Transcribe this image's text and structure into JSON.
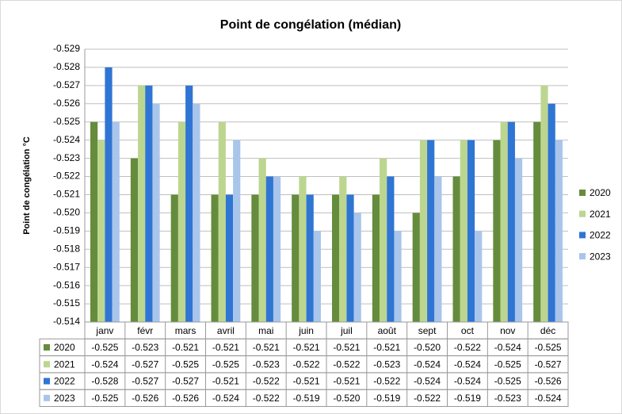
{
  "chart_data": {
    "type": "bar",
    "title": "Point de congélation (médian)",
    "y_label": "Point de congélation °C",
    "categories": [
      "janv",
      "févr",
      "mars",
      "avril",
      "mai",
      "juin",
      "juil",
      "août",
      "sept",
      "oct",
      "nov",
      "déc"
    ],
    "series": [
      {
        "name": "2020",
        "color": "#648c3c",
        "values": [
          -0.525,
          -0.523,
          -0.521,
          -0.521,
          -0.521,
          -0.521,
          -0.521,
          -0.521,
          -0.52,
          -0.522,
          -0.524,
          -0.525
        ],
        "value_labels": [
          "-0.525",
          "-0.523",
          "-0.521",
          "-0.521",
          "-0.521",
          "-0.521",
          "-0.521",
          "-0.521",
          "-0.520",
          "-0.522",
          "-0.524",
          "-0.525"
        ]
      },
      {
        "name": "2021",
        "color": "#bcd690",
        "values": [
          -0.524,
          -0.527,
          -0.525,
          -0.525,
          -0.523,
          -0.522,
          -0.522,
          -0.523,
          -0.524,
          -0.524,
          -0.525,
          -0.527
        ],
        "value_labels": [
          "-0.524",
          "-0.527",
          "-0.525",
          "-0.525",
          "-0.523",
          "-0.522",
          "-0.522",
          "-0.523",
          "-0.524",
          "-0.524",
          "-0.525",
          "-0.527"
        ]
      },
      {
        "name": "2022",
        "color": "#2f75d4",
        "values": [
          -0.528,
          -0.527,
          -0.527,
          -0.521,
          -0.522,
          -0.521,
          -0.521,
          -0.522,
          -0.524,
          -0.524,
          -0.525,
          -0.526
        ],
        "value_labels": [
          "-0.528",
          "-0.527",
          "-0.527",
          "-0.521",
          "-0.522",
          "-0.521",
          "-0.521",
          "-0.522",
          "-0.524",
          "-0.524",
          "-0.525",
          "-0.526"
        ]
      },
      {
        "name": "2023",
        "color": "#a9c5eb",
        "values": [
          -0.525,
          -0.526,
          -0.526,
          -0.524,
          -0.522,
          -0.519,
          -0.52,
          -0.519,
          -0.522,
          -0.519,
          -0.523,
          -0.524
        ],
        "value_labels": [
          "-0.525",
          "-0.526",
          "-0.526",
          "-0.524",
          "-0.522",
          "-0.519",
          "-0.520",
          "-0.519",
          "-0.522",
          "-0.519",
          "-0.523",
          "-0.524"
        ]
      }
    ],
    "ylim": [
      -0.514,
      -0.529
    ],
    "yticks": [
      -0.514,
      -0.515,
      -0.516,
      -0.517,
      -0.518,
      -0.519,
      {
        "value": -0.52,
        "label": "-0.520"
      },
      -0.521,
      -0.522,
      -0.523,
      -0.524,
      -0.525,
      -0.526,
      -0.527,
      -0.528,
      -0.529
    ],
    "grid": true,
    "legend": "right"
  }
}
